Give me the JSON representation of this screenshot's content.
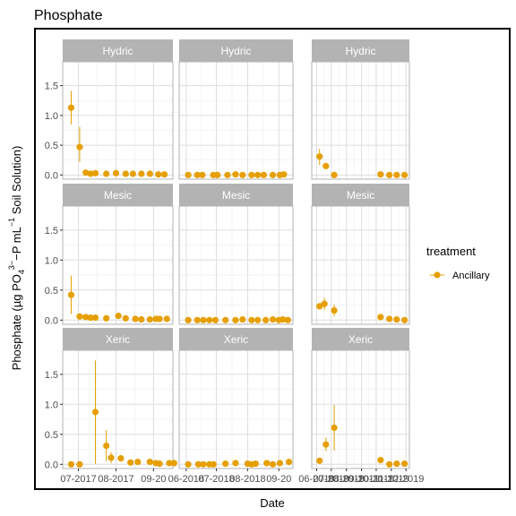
{
  "chart_data": {
    "type": "scatter",
    "title": "Phosphate",
    "xlabel": "Date",
    "ylabel": {
      "prefix": "Phosphate (µg PO",
      "sub1": "4",
      "sup1": "3−",
      "middle": "−P mL",
      "sup2": "−1",
      "suffix": " Soil Solution)"
    },
    "ylim": [
      -0.07,
      1.9
    ],
    "yticks": [
      "0.0",
      "0.5",
      "1.0",
      "1.5"
    ],
    "ytick_values": [
      0,
      0.5,
      1.0,
      1.5
    ],
    "grid": true,
    "legend": {
      "title": "treatment",
      "entries": [
        "Ancillary"
      ],
      "placement": "right"
    },
    "series_color": "#E69F00",
    "strip_color": "#B3B3B3",
    "column_xticks": [
      {
        "labels": [
          "07-2017",
          "08-2017",
          "09-20"
        ],
        "x_values": [
          "2017-07",
          "2017-08",
          "2017-09"
        ]
      },
      {
        "labels": [
          "06-2018",
          "07-2018",
          "08-2018",
          "09-20"
        ],
        "x_values": [
          "2018-06",
          "2018-07",
          "2018-08",
          "2018-09"
        ]
      },
      {
        "labels": [
          "06-2019",
          "07-2019",
          "08-2019",
          "09-2019",
          "10-2019",
          "11-2019",
          "12-2019"
        ],
        "x_values": [
          "2019-06",
          "2019-07",
          "2019-08",
          "2019-09",
          "2019-10",
          "2019-11",
          "2019-12"
        ]
      }
    ],
    "panels": [
      {
        "strip": "Hydric",
        "row": 0,
        "col": 0,
        "points": [
          {
            "x": "2017-06-25",
            "y": 1.13,
            "lo": 0.85,
            "hi": 1.41
          },
          {
            "x": "2017-07-02",
            "y": 0.47,
            "lo": 0.22,
            "hi": 0.81
          },
          {
            "x": "2017-07-07",
            "y": 0.04
          },
          {
            "x": "2017-07-11",
            "y": 0.02
          },
          {
            "x": "2017-07-15",
            "y": 0.03
          },
          {
            "x": "2017-07-24",
            "y": 0.02
          },
          {
            "x": "2017-08-01",
            "y": 0.03
          },
          {
            "x": "2017-08-09",
            "y": 0.02
          },
          {
            "x": "2017-08-15",
            "y": 0.02
          },
          {
            "x": "2017-08-22",
            "y": 0.02
          },
          {
            "x": "2017-08-29",
            "y": 0.02
          },
          {
            "x": "2017-09-05",
            "y": 0.01
          },
          {
            "x": "2017-09-10",
            "y": 0.01
          }
        ]
      },
      {
        "strip": "Hydric",
        "row": 0,
        "col": 1,
        "points": [
          {
            "x": "2018-06-03",
            "y": 0.0
          },
          {
            "x": "2018-06-12",
            "y": 0.0
          },
          {
            "x": "2018-06-17",
            "y": 0.0
          },
          {
            "x": "2018-06-28",
            "y": 0.0
          },
          {
            "x": "2018-07-02",
            "y": 0.0
          },
          {
            "x": "2018-07-12",
            "y": 0.0
          },
          {
            "x": "2018-07-20",
            "y": 0.01
          },
          {
            "x": "2018-07-27",
            "y": 0.0
          },
          {
            "x": "2018-08-05",
            "y": 0.0
          },
          {
            "x": "2018-08-11",
            "y": 0.0
          },
          {
            "x": "2018-08-17",
            "y": 0.0
          },
          {
            "x": "2018-08-26",
            "y": 0.0
          },
          {
            "x": "2018-09-02",
            "y": 0.0
          },
          {
            "x": "2018-09-06",
            "y": 0.01
          }
        ]
      },
      {
        "strip": "Hydric",
        "row": 0,
        "col": 2,
        "points": [
          {
            "x": "2019-06-07",
            "y": 0.31,
            "lo": 0.17,
            "hi": 0.44
          },
          {
            "x": "2019-06-20",
            "y": 0.15
          },
          {
            "x": "2019-07-07",
            "y": 0.0
          },
          {
            "x": "2019-10-10",
            "y": 0.01
          },
          {
            "x": "2019-10-28",
            "y": 0.0
          },
          {
            "x": "2019-11-12",
            "y": 0.0
          },
          {
            "x": "2019-11-28",
            "y": 0.0
          }
        ]
      },
      {
        "strip": "Mesic",
        "row": 1,
        "col": 0,
        "points": [
          {
            "x": "2017-06-25",
            "y": 0.42,
            "lo": 0.1,
            "hi": 0.74
          },
          {
            "x": "2017-07-02",
            "y": 0.06
          },
          {
            "x": "2017-07-07",
            "y": 0.05
          },
          {
            "x": "2017-07-11",
            "y": 0.04
          },
          {
            "x": "2017-07-15",
            "y": 0.04
          },
          {
            "x": "2017-07-24",
            "y": 0.03
          },
          {
            "x": "2017-08-03",
            "y": 0.07
          },
          {
            "x": "2017-08-09",
            "y": 0.03
          },
          {
            "x": "2017-08-17",
            "y": 0.02
          },
          {
            "x": "2017-08-22",
            "y": 0.01
          },
          {
            "x": "2017-08-29",
            "y": 0.01
          },
          {
            "x": "2017-09-03",
            "y": 0.02
          },
          {
            "x": "2017-09-06",
            "y": 0.02
          },
          {
            "x": "2017-09-12",
            "y": 0.02
          }
        ]
      },
      {
        "strip": "Mesic",
        "row": 1,
        "col": 1,
        "points": [
          {
            "x": "2018-06-03",
            "y": 0.0
          },
          {
            "x": "2018-06-12",
            "y": 0.0
          },
          {
            "x": "2018-06-18",
            "y": 0.0
          },
          {
            "x": "2018-06-24",
            "y": 0.0
          },
          {
            "x": "2018-06-30",
            "y": 0.0
          },
          {
            "x": "2018-07-10",
            "y": 0.0
          },
          {
            "x": "2018-07-20",
            "y": 0.0
          },
          {
            "x": "2018-07-27",
            "y": 0.01
          },
          {
            "x": "2018-08-05",
            "y": 0.0
          },
          {
            "x": "2018-08-11",
            "y": 0.0
          },
          {
            "x": "2018-08-19",
            "y": 0.0
          },
          {
            "x": "2018-08-26",
            "y": 0.01
          },
          {
            "x": "2018-09-01",
            "y": 0.0
          },
          {
            "x": "2018-09-05",
            "y": 0.01
          },
          {
            "x": "2018-09-10",
            "y": 0.0
          }
        ]
      },
      {
        "strip": "Mesic",
        "row": 1,
        "col": 2,
        "points": [
          {
            "x": "2019-06-07",
            "y": 0.23
          },
          {
            "x": "2019-06-17",
            "y": 0.27,
            "lo": 0.17,
            "hi": 0.37
          },
          {
            "x": "2019-07-07",
            "y": 0.16,
            "lo": 0.06,
            "hi": 0.26
          },
          {
            "x": "2019-10-10",
            "y": 0.05
          },
          {
            "x": "2019-10-28",
            "y": 0.02
          },
          {
            "x": "2019-11-12",
            "y": 0.01
          },
          {
            "x": "2019-11-28",
            "y": 0.0
          }
        ]
      },
      {
        "strip": "Xeric",
        "row": 2,
        "col": 0,
        "points": [
          {
            "x": "2017-06-25",
            "y": 0.0
          },
          {
            "x": "2017-07-02",
            "y": 0.0
          },
          {
            "x": "2017-07-15",
            "y": 0.87,
            "lo": 0.01,
            "hi": 1.73
          },
          {
            "x": "2017-07-24",
            "y": 0.31,
            "lo": 0.05,
            "hi": 0.57
          },
          {
            "x": "2017-07-28",
            "y": 0.11,
            "lo": 0.02,
            "hi": 0.2
          },
          {
            "x": "2017-08-05",
            "y": 0.1
          },
          {
            "x": "2017-08-13",
            "y": 0.03
          },
          {
            "x": "2017-08-19",
            "y": 0.04
          },
          {
            "x": "2017-08-29",
            "y": 0.04
          },
          {
            "x": "2017-09-03",
            "y": 0.02
          },
          {
            "x": "2017-09-06",
            "y": 0.01
          },
          {
            "x": "2017-09-14",
            "y": 0.02
          },
          {
            "x": "2017-09-18",
            "y": 0.02
          },
          {
            "x": "2017-09-25",
            "y": 0.08
          }
        ]
      },
      {
        "strip": "Xeric",
        "row": 2,
        "col": 1,
        "points": [
          {
            "x": "2018-06-03",
            "y": 0.0
          },
          {
            "x": "2018-06-13",
            "y": 0.0
          },
          {
            "x": "2018-06-18",
            "y": 0.0
          },
          {
            "x": "2018-06-24",
            "y": 0.0
          },
          {
            "x": "2018-06-28",
            "y": 0.0
          },
          {
            "x": "2018-07-10",
            "y": 0.01
          },
          {
            "x": "2018-07-20",
            "y": 0.02
          },
          {
            "x": "2018-08-01",
            "y": 0.01
          },
          {
            "x": "2018-08-05",
            "y": 0.0
          },
          {
            "x": "2018-08-09",
            "y": 0.01
          },
          {
            "x": "2018-08-20",
            "y": 0.02
          },
          {
            "x": "2018-08-26",
            "y": 0.0
          },
          {
            "x": "2018-09-02",
            "y": 0.02
          },
          {
            "x": "2018-09-11",
            "y": 0.04
          }
        ]
      },
      {
        "strip": "Xeric",
        "row": 2,
        "col": 2,
        "points": [
          {
            "x": "2019-06-07",
            "y": 0.06
          },
          {
            "x": "2019-06-20",
            "y": 0.33,
            "lo": 0.22,
            "hi": 0.45
          },
          {
            "x": "2019-07-07",
            "y": 0.61,
            "lo": 0.23,
            "hi": 0.99
          },
          {
            "x": "2019-10-10",
            "y": 0.07
          },
          {
            "x": "2019-10-28",
            "y": 0.0
          },
          {
            "x": "2019-11-12",
            "y": 0.01
          },
          {
            "x": "2019-11-28",
            "y": 0.01
          }
        ]
      }
    ]
  }
}
